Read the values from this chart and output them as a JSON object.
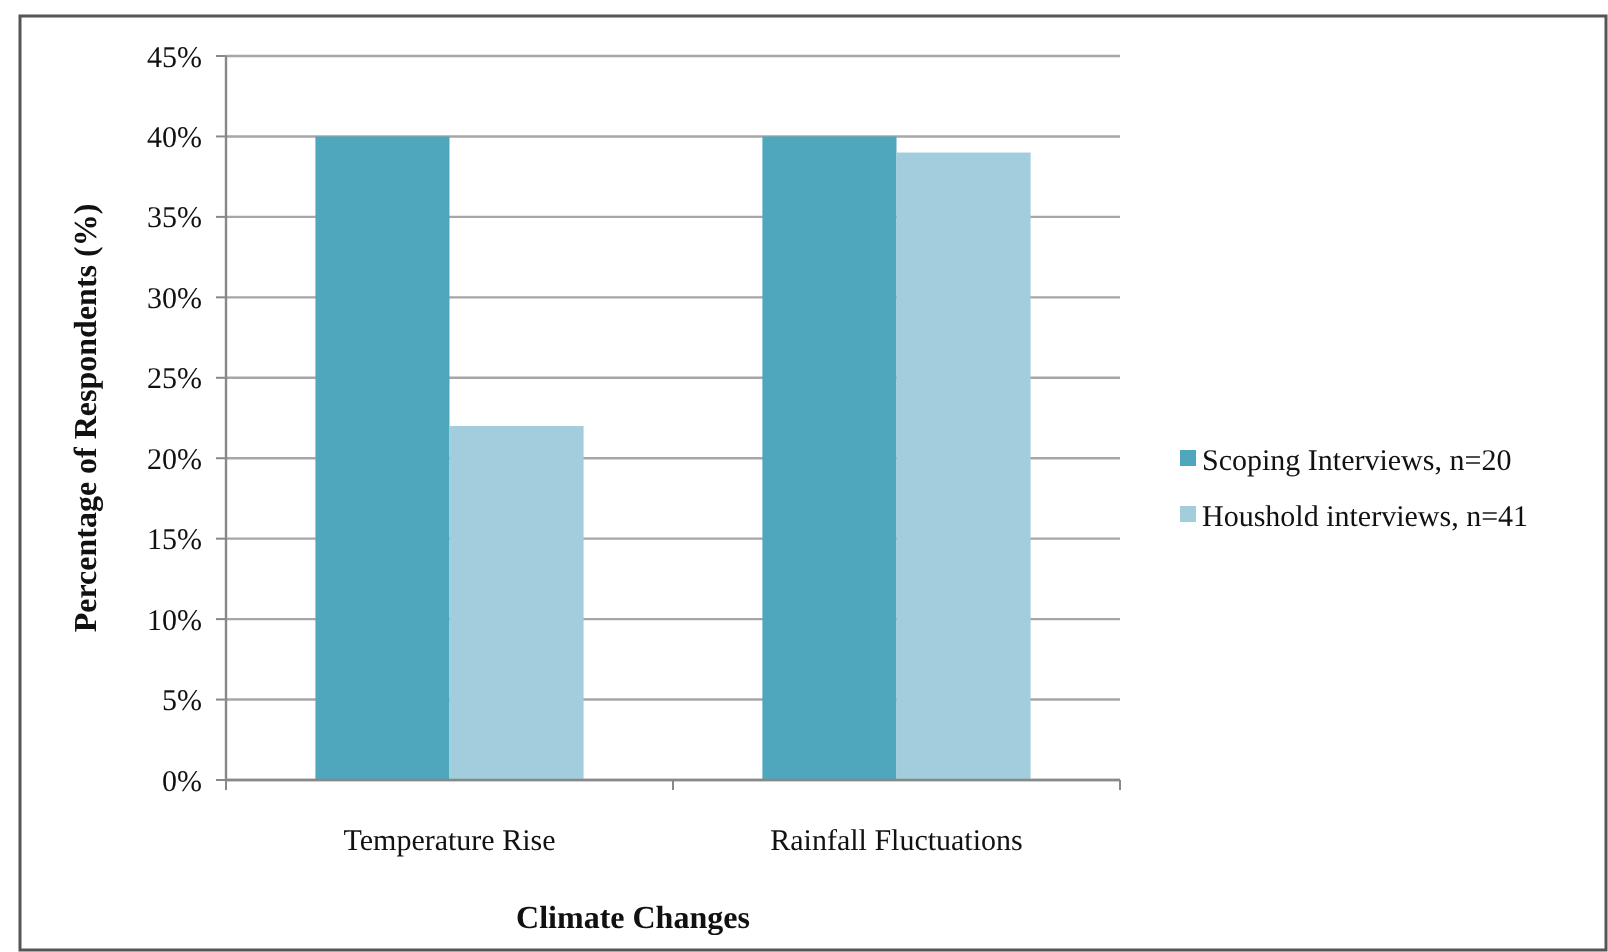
{
  "chart_data": {
    "type": "bar",
    "xlabel": "Climate Changes",
    "ylabel": "Percentage of Respondents (%)",
    "categories": [
      "Temperature Rise",
      "Rainfall Fluctuations"
    ],
    "series": [
      {
        "name": "Scoping Interviews, n=20",
        "color": "#4fa7bd",
        "values": [
          40,
          40
        ]
      },
      {
        "name": "Houshold interviews, n=41",
        "color": "#a2cddc",
        "values": [
          22,
          39
        ]
      }
    ],
    "ylim": [
      0,
      45
    ],
    "yticks": [
      {
        "value": 0,
        "label": "0%"
      },
      {
        "value": 5,
        "label": "5%"
      },
      {
        "value": 10,
        "label": "10%"
      },
      {
        "value": 15,
        "label": "15%"
      },
      {
        "value": 20,
        "label": "20%"
      },
      {
        "value": 25,
        "label": "25%"
      },
      {
        "value": 30,
        "label": "30%"
      },
      {
        "value": 35,
        "label": "35%"
      },
      {
        "value": 40,
        "label": "40%"
      },
      {
        "value": 45,
        "label": "45%"
      }
    ],
    "grid": "y",
    "legend": "right"
  }
}
